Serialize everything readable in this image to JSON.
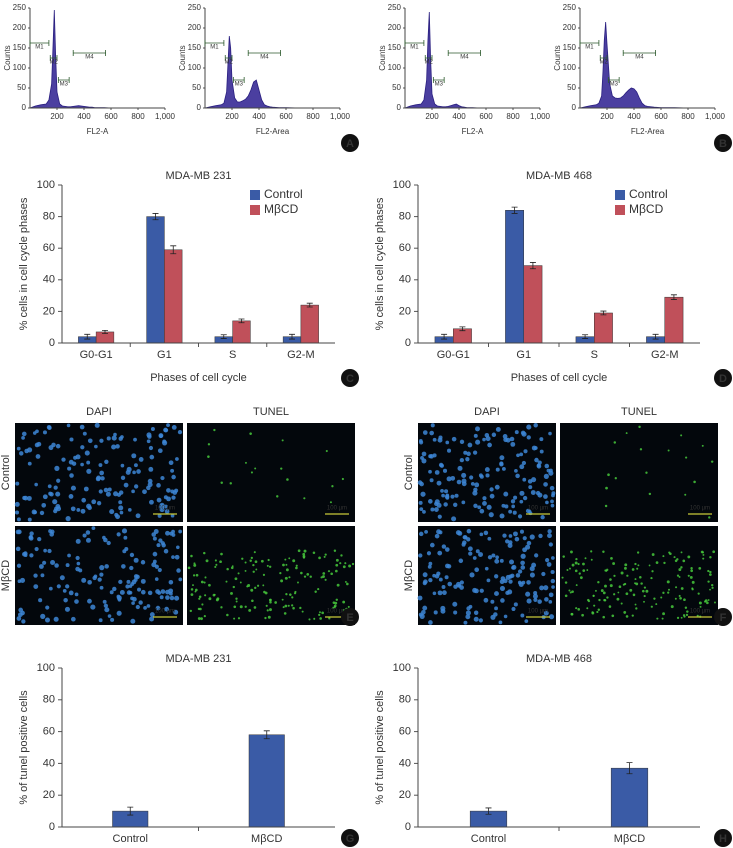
{
  "chart_data": [
    {
      "type": "histogram-area",
      "xlabel": "FL2-A",
      "ylabel": "Counts",
      "color": "#4b3fa0",
      "x": [
        0,
        40,
        80,
        120,
        140,
        160,
        170,
        180,
        190,
        200,
        220,
        240,
        260,
        280,
        300,
        320,
        340,
        360,
        380,
        400,
        420,
        440,
        460,
        480,
        500,
        550,
        600,
        700,
        800,
        1000
      ],
      "values": [
        0,
        5,
        8,
        10,
        20,
        60,
        150,
        245,
        130,
        40,
        10,
        5,
        4,
        3,
        3,
        4,
        5,
        6,
        5,
        4,
        3,
        2,
        2,
        1,
        1,
        1,
        0,
        0,
        0,
        0
      ],
      "xlim": [
        0,
        1000
      ],
      "ylim": [
        0,
        250
      ],
      "xticks": [
        200,
        400,
        600,
        800,
        {
          "value": 1000,
          "label": "1,000"
        }
      ],
      "yticks": [
        0,
        50,
        100,
        150,
        200,
        250
      ],
      "annotations": [
        "M1",
        "M2",
        "M3",
        "M4"
      ]
    },
    {
      "type": "histogram-area",
      "xlabel": "FL2-Area",
      "ylabel": "Counts",
      "color": "#4b3fa0",
      "x": [
        0,
        40,
        80,
        120,
        140,
        160,
        170,
        180,
        190,
        200,
        220,
        240,
        260,
        280,
        300,
        320,
        340,
        360,
        380,
        400,
        420,
        440,
        460,
        480,
        500,
        550,
        600,
        700,
        800,
        1000
      ],
      "values": [
        0,
        3,
        6,
        8,
        12,
        40,
        110,
        180,
        150,
        70,
        25,
        15,
        15,
        18,
        22,
        30,
        45,
        65,
        70,
        45,
        20,
        8,
        5,
        3,
        2,
        1,
        1,
        0,
        0,
        0
      ],
      "xlim": [
        0,
        1000
      ],
      "ylim": [
        0,
        250
      ],
      "xticks": [
        200,
        400,
        600,
        800,
        {
          "value": 1000,
          "label": "1,000"
        }
      ],
      "yticks": [
        0,
        50,
        100,
        150,
        200,
        250
      ],
      "annotations": [
        "M1",
        "M2",
        "M3",
        "M4"
      ]
    },
    {
      "type": "histogram-area",
      "xlabel": "FL2-A",
      "ylabel": "Counts",
      "color": "#4b3fa0",
      "x": [
        0,
        40,
        80,
        120,
        140,
        160,
        170,
        180,
        190,
        200,
        220,
        240,
        260,
        280,
        300,
        320,
        340,
        360,
        380,
        400,
        420,
        440,
        460,
        480,
        500,
        550,
        600,
        700,
        800,
        1000
      ],
      "values": [
        0,
        5,
        8,
        10,
        20,
        70,
        170,
        240,
        120,
        35,
        10,
        5,
        4,
        3,
        3,
        4,
        6,
        8,
        10,
        6,
        3,
        2,
        1,
        1,
        1,
        0,
        0,
        0,
        0,
        0
      ],
      "xlim": [
        0,
        1000
      ],
      "ylim": [
        0,
        250
      ],
      "xticks": [
        200,
        400,
        600,
        800,
        {
          "value": 1000,
          "label": "1,000"
        }
      ],
      "yticks": [
        0,
        50,
        100,
        150,
        200,
        250
      ],
      "annotations": [
        "M1",
        "M2",
        "M3",
        "M4"
      ]
    },
    {
      "type": "histogram-area",
      "xlabel": "FL2-Area",
      "ylabel": "Counts",
      "color": "#4b3fa0",
      "x": [
        0,
        40,
        80,
        120,
        140,
        160,
        170,
        180,
        190,
        200,
        220,
        240,
        260,
        280,
        300,
        320,
        340,
        360,
        380,
        400,
        420,
        440,
        460,
        480,
        500,
        550,
        600,
        700,
        800,
        1000
      ],
      "values": [
        0,
        3,
        6,
        8,
        12,
        30,
        90,
        170,
        215,
        160,
        60,
        30,
        25,
        24,
        25,
        30,
        38,
        45,
        50,
        48,
        40,
        25,
        12,
        6,
        4,
        2,
        1,
        1,
        0,
        0
      ],
      "xlim": [
        0,
        1000
      ],
      "ylim": [
        0,
        250
      ],
      "xticks": [
        200,
        400,
        600,
        800,
        {
          "value": 1000,
          "label": "1,000"
        }
      ],
      "yticks": [
        0,
        50,
        100,
        150,
        200,
        250
      ],
      "annotations": [
        "M1",
        "M2",
        "M3",
        "M4"
      ]
    },
    {
      "type": "grouped-bar",
      "title": "MDA-MB 231",
      "xlabel": "Phases of cell cycle",
      "ylabel": "% cells in cell cycle phases",
      "categories": [
        "G0-G1",
        "G1",
        "S",
        "G2-M"
      ],
      "series": [
        {
          "name": "Control",
          "color": "#3a5ba6",
          "values": [
            4,
            80,
            4,
            4
          ],
          "errors": [
            1.5,
            2,
            1.2,
            1.5
          ]
        },
        {
          "name": "MβCD",
          "color": "#c0505a",
          "values": [
            7,
            59,
            14,
            24
          ],
          "errors": [
            1,
            2.5,
            1.2,
            1.2
          ]
        }
      ],
      "ylim": [
        0,
        100
      ],
      "yticks": [
        0,
        20,
        40,
        60,
        80,
        100
      ],
      "legend": "top-right"
    },
    {
      "type": "grouped-bar",
      "title": "MDA-MB 468",
      "xlabel": "Phases of cell cycle",
      "ylabel": "% cells in cell cycle phases",
      "categories": [
        "G0-G1",
        "G1",
        "S",
        "G2-M"
      ],
      "series": [
        {
          "name": "Control",
          "color": "#3a5ba6",
          "values": [
            4,
            84,
            4,
            4
          ],
          "errors": [
            1.5,
            2,
            1.2,
            1.5
          ]
        },
        {
          "name": "MβCD",
          "color": "#c0505a",
          "values": [
            9,
            49,
            19,
            29
          ],
          "errors": [
            1.2,
            2,
            1.2,
            1.5
          ]
        }
      ],
      "ylim": [
        0,
        100
      ],
      "yticks": [
        0,
        20,
        40,
        60,
        80,
        100
      ],
      "legend": "top-right"
    },
    {
      "type": "bar",
      "title": "MDA-MB 231",
      "ylabel": "% of tunel positive cells",
      "categories": [
        "Control",
        "MβCD"
      ],
      "values": [
        10,
        58
      ],
      "errors": [
        2.5,
        2.5
      ],
      "color": "#3a5ba6",
      "ylim": [
        0,
        100
      ],
      "yticks": [
        0,
        20,
        40,
        60,
        80,
        100
      ]
    },
    {
      "type": "bar",
      "title": "MDA-MB 468",
      "ylabel": "% of tunel positive cells",
      "categories": [
        "Control",
        "MβCD"
      ],
      "values": [
        10,
        37
      ],
      "errors": [
        2,
        3.5
      ],
      "color": "#3a5ba6",
      "ylim": [
        0,
        100
      ],
      "yticks": [
        0,
        20,
        40,
        60,
        80,
        100
      ]
    }
  ],
  "image_panels": [
    {
      "column_headers": [
        "DAPI",
        "TUNEL"
      ],
      "row_labels": [
        "Control",
        "MβCD"
      ],
      "scale_bars": [
        "100 µm",
        "100 µm",
        "100 µm",
        "100 µm"
      ]
    },
    {
      "column_headers": [
        "DAPI",
        "TUNEL"
      ],
      "row_labels": [
        "Control",
        "MβCD"
      ],
      "scale_bars": [
        "100 µm",
        "100 µm",
        "100 µm",
        "100 µm"
      ]
    }
  ],
  "panel_labels": [
    "A",
    "B",
    "C",
    "D",
    "E",
    "F",
    "G",
    "H"
  ]
}
